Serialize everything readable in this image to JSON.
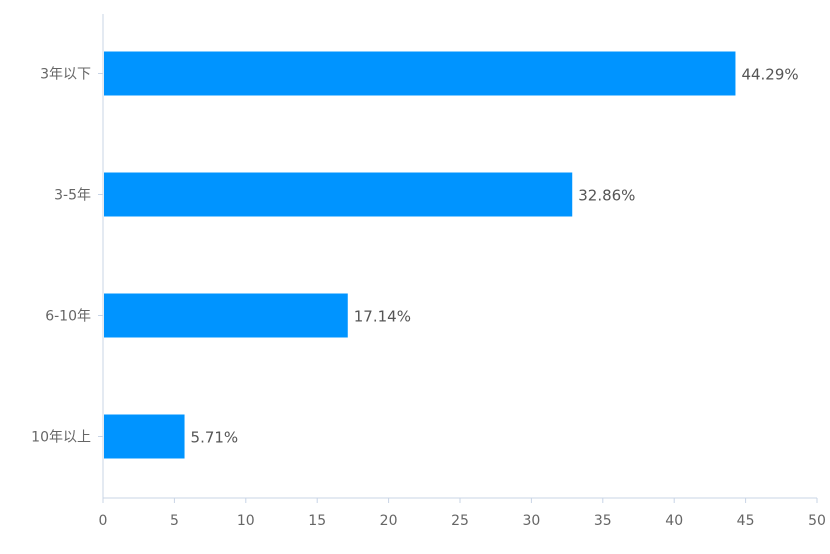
{
  "chart_data": {
    "type": "bar",
    "orientation": "horizontal",
    "categories": [
      "3年以下",
      "3-5年",
      "6-10年",
      "10年以上"
    ],
    "values": [
      44.29,
      32.86,
      17.14,
      5.71
    ],
    "value_labels": [
      "44.29%",
      "32.86%",
      "17.14%",
      "5.71%"
    ],
    "xlim": [
      0,
      50
    ],
    "x_ticks": [
      0,
      5,
      10,
      15,
      20,
      25,
      30,
      35,
      40,
      45,
      50
    ],
    "title": "",
    "xlabel": "",
    "ylabel": "",
    "grid": false,
    "legend": "none",
    "bar_color": "#0094ff",
    "axis_color": "#c8d4e6"
  }
}
